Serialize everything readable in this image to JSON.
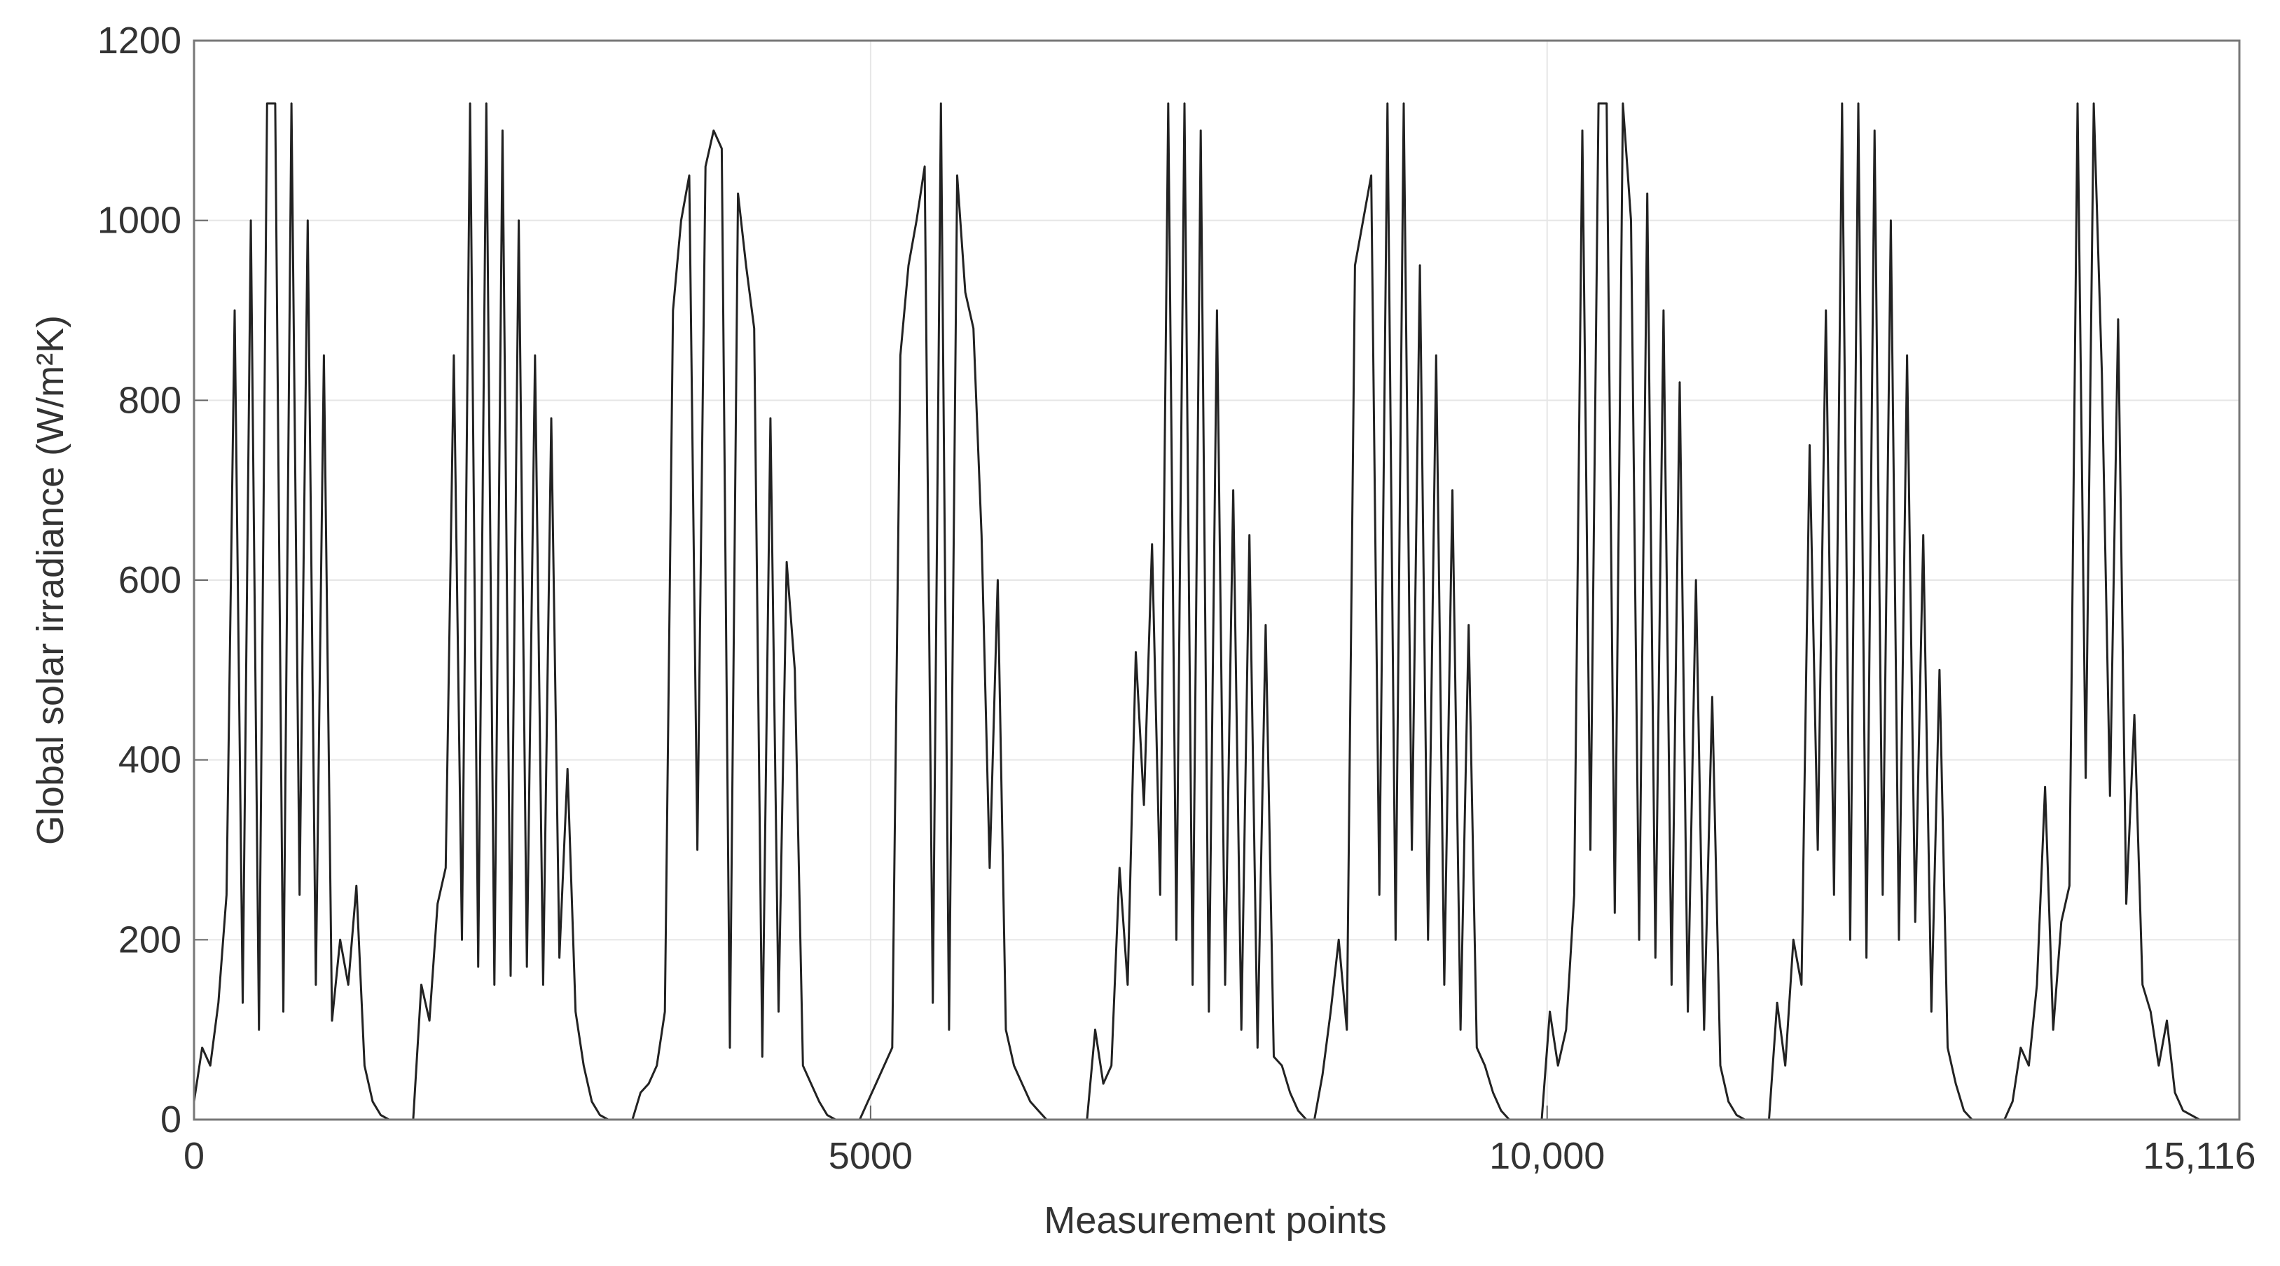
{
  "chart_data": {
    "type": "line",
    "xlabel": "Measurement points",
    "ylabel": "Global solar irradiance (W/m²K)",
    "xlim": [
      0,
      15116
    ],
    "ylim": [
      0,
      1200
    ],
    "xticks": [
      0,
      5000,
      {
        "value": 10000,
        "label": "10,000"
      },
      {
        "value": 15116,
        "label": "15,116"
      }
    ],
    "yticks": [
      0,
      200,
      400,
      600,
      800,
      1000,
      1200
    ],
    "grid": true,
    "x": [
      0,
      60,
      120,
      180,
      240,
      300,
      360,
      420,
      480,
      540,
      600,
      660,
      720,
      780,
      840,
      900,
      960,
      1020,
      1080,
      1140,
      1200,
      1260,
      1320,
      1380,
      1440,
      1500,
      1560,
      1620,
      1680,
      1740,
      1800,
      1860,
      1920,
      1980,
      2040,
      2100,
      2160,
      2220,
      2280,
      2340,
      2400,
      2460,
      2520,
      2580,
      2640,
      2700,
      2760,
      2820,
      2880,
      2940,
      3000,
      3060,
      3120,
      3180,
      3240,
      3300,
      3360,
      3420,
      3480,
      3540,
      3600,
      3660,
      3720,
      3780,
      3840,
      3900,
      3960,
      4020,
      4080,
      4140,
      4200,
      4260,
      4320,
      4380,
      4440,
      4500,
      4560,
      4620,
      4680,
      4740,
      4800,
      4860,
      4920,
      4980,
      5040,
      5100,
      5160,
      5220,
      5280,
      5340,
      5400,
      5460,
      5520,
      5580,
      5640,
      5700,
      5760,
      5820,
      5880,
      5940,
      6000,
      6060,
      6120,
      6180,
      6240,
      6300,
      6360,
      6420,
      6480,
      6540,
      6600,
      6660,
      6720,
      6780,
      6840,
      6900,
      6960,
      7020,
      7080,
      7140,
      7200,
      7260,
      7320,
      7380,
      7440,
      7500,
      7560,
      7620,
      7680,
      7740,
      7800,
      7860,
      7920,
      7980,
      8040,
      8100,
      8160,
      8220,
      8280,
      8340,
      8400,
      8460,
      8520,
      8580,
      8640,
      8700,
      8760,
      8820,
      8880,
      8940,
      9000,
      9060,
      9120,
      9180,
      9240,
      9300,
      9360,
      9420,
      9480,
      9540,
      9600,
      9660,
      9720,
      9780,
      9840,
      9900,
      9960,
      10020,
      10080,
      10140,
      10200,
      10260,
      10320,
      10380,
      10440,
      10500,
      10560,
      10620,
      10680,
      10740,
      10800,
      10860,
      10920,
      10980,
      11040,
      11100,
      11160,
      11220,
      11280,
      11340,
      11400,
      11460,
      11520,
      11580,
      11640,
      11700,
      11760,
      11820,
      11880,
      11940,
      12000,
      12060,
      12120,
      12180,
      12240,
      12300,
      12360,
      12420,
      12480,
      12540,
      12600,
      12660,
      12720,
      12780,
      12840,
      12900,
      12960,
      13020,
      13080,
      13140,
      13200,
      13260,
      13320,
      13380,
      13440,
      13500,
      13560,
      13620,
      13680,
      13740,
      13800,
      13860,
      13920,
      13980,
      14040,
      14100,
      14160,
      14220,
      14280,
      14340,
      14400,
      14460,
      14520,
      14580,
      14640,
      14700,
      14760,
      14820,
      14880,
      14940,
      15000,
      15060
    ],
    "series": [
      {
        "color": "#222222",
        "values": [
          20,
          80,
          60,
          130,
          250,
          900,
          130,
          1000,
          100,
          1130,
          1130,
          120,
          1130,
          250,
          1000,
          150,
          850,
          110,
          200,
          150,
          260,
          60,
          20,
          5,
          0,
          0,
          0,
          0,
          150,
          110,
          240,
          280,
          850,
          200,
          1130,
          170,
          1130,
          150,
          1100,
          160,
          1000,
          170,
          850,
          150,
          780,
          180,
          390,
          120,
          60,
          20,
          5,
          0,
          0,
          0,
          0,
          30,
          40,
          60,
          120,
          900,
          1000,
          1050,
          300,
          1060,
          1100,
          1080,
          80,
          1030,
          950,
          880,
          70,
          780,
          120,
          620,
          500,
          60,
          40,
          20,
          5,
          0,
          0,
          0,
          0,
          20,
          40,
          60,
          80,
          850,
          950,
          1000,
          1060,
          130,
          1130,
          100,
          1050,
          920,
          880,
          650,
          280,
          600,
          100,
          60,
          40,
          20,
          10,
          0,
          0,
          0,
          0,
          0,
          0,
          100,
          40,
          60,
          280,
          150,
          520,
          350,
          640,
          250,
          1130,
          200,
          1130,
          150,
          1100,
          120,
          900,
          150,
          700,
          100,
          650,
          80,
          550,
          70,
          60,
          30,
          10,
          0,
          0,
          50,
          120,
          200,
          100,
          950,
          1000,
          1050,
          250,
          1130,
          200,
          1130,
          300,
          950,
          200,
          850,
          150,
          700,
          100,
          550,
          80,
          60,
          30,
          10,
          0,
          0,
          0,
          0,
          0,
          120,
          60,
          100,
          250,
          1100,
          300,
          1130,
          1130,
          230,
          1130,
          1000,
          200,
          1030,
          180,
          900,
          150,
          820,
          120,
          600,
          100,
          470,
          60,
          20,
          5,
          0,
          0,
          0,
          0,
          130,
          60,
          200,
          150,
          750,
          300,
          900,
          250,
          1130,
          200,
          1130,
          180,
          1100,
          250,
          1000,
          200,
          850,
          220,
          650,
          120,
          500,
          80,
          40,
          10,
          0,
          0,
          0,
          0,
          0,
          20,
          80,
          60,
          150,
          370,
          100,
          220,
          260,
          1130,
          380,
          1130,
          830,
          360,
          890,
          240,
          450,
          150,
          120,
          60,
          110,
          30,
          10,
          5,
          0,
          0,
          0,
          0,
          0
        ]
      }
    ]
  }
}
